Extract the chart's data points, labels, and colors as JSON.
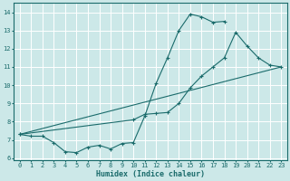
{
  "xlabel": "Humidex (Indice chaleur)",
  "xlim": [
    -0.5,
    23.5
  ],
  "ylim": [
    5.9,
    14.5
  ],
  "yticks": [
    6,
    7,
    8,
    9,
    10,
    11,
    12,
    13,
    14
  ],
  "xticks": [
    0,
    1,
    2,
    3,
    4,
    5,
    6,
    7,
    8,
    9,
    10,
    11,
    12,
    13,
    14,
    15,
    16,
    17,
    18,
    19,
    20,
    21,
    22,
    23
  ],
  "bg_color": "#cce8e8",
  "grid_color": "#b8d8d8",
  "line_color": "#1a6b6b",
  "line1_x": [
    0,
    1,
    2,
    3,
    4,
    5,
    6,
    7,
    8,
    9,
    10,
    11,
    12,
    13,
    14,
    15,
    16,
    17,
    18
  ],
  "line1_y": [
    7.3,
    7.2,
    7.2,
    6.85,
    6.35,
    6.3,
    6.6,
    6.7,
    6.5,
    6.8,
    6.85,
    8.3,
    10.1,
    11.5,
    13.0,
    13.9,
    13.75,
    13.45,
    13.5
  ],
  "line2_x": [
    0,
    10,
    11,
    12,
    13,
    14,
    15,
    16,
    17,
    18,
    19,
    20,
    21,
    22,
    23
  ],
  "line2_y": [
    7.3,
    8.1,
    8.4,
    8.45,
    8.5,
    9.0,
    9.85,
    10.5,
    11.0,
    11.5,
    12.9,
    12.15,
    11.5,
    11.1,
    11.0
  ],
  "line3_x": [
    0,
    23
  ],
  "line3_y": [
    7.3,
    11.0
  ]
}
